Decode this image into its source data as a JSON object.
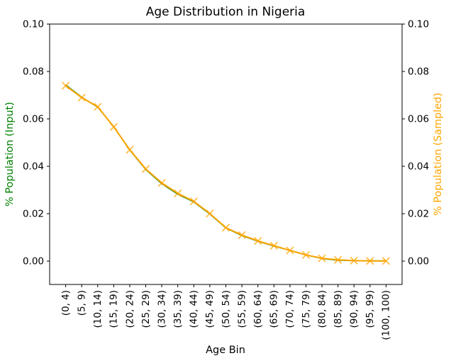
{
  "chart_data": {
    "type": "line",
    "title": "Age Distribution in Nigeria",
    "xlabel": "Age Bin",
    "ylabel_left": "% Population (Input)",
    "ylabel_right": "% Population (Sampled)",
    "categories": [
      "(0, 4)",
      "(5, 9)",
      "(10, 14)",
      "(15, 19)",
      "(20, 24)",
      "(25, 29)",
      "(30, 34)",
      "(35, 39)",
      "(40, 44)",
      "(45, 49)",
      "(50, 54)",
      "(55, 59)",
      "(60, 64)",
      "(65, 69)",
      "(70, 74)",
      "(75, 79)",
      "(80, 84)",
      "(85, 89)",
      "(90, 94)",
      "(95, 99)",
      "(100, 100)"
    ],
    "series": [
      {
        "name": "% Population (Input)",
        "axis": "left",
        "color": "#008000",
        "marker": "none",
        "values": [
          0.0743,
          0.0691,
          0.065,
          0.0567,
          0.0469,
          0.0387,
          0.0327,
          0.0283,
          0.025,
          0.0199,
          0.014,
          0.0108,
          0.0084,
          0.0064,
          0.0045,
          0.0026,
          0.0011,
          0.0004,
          0.0002,
          0.0001,
          0.0001
        ]
      },
      {
        "name": "% Population (Sampled)",
        "axis": "right",
        "color": "#ffa500",
        "marker": "x",
        "values": [
          0.074,
          0.069,
          0.0651,
          0.0566,
          0.047,
          0.0389,
          0.033,
          0.0286,
          0.0252,
          0.0201,
          0.0141,
          0.011,
          0.0085,
          0.0065,
          0.0045,
          0.0026,
          0.0012,
          0.0005,
          0.0002,
          0.0001,
          0.0001
        ]
      }
    ],
    "ylim": [
      0.0,
      0.1
    ],
    "yticks": [
      0.0,
      0.02,
      0.04,
      0.06,
      0.08,
      0.1
    ],
    "ytick_labels": [
      "0.00",
      "0.02",
      "0.04",
      "0.06",
      "0.08",
      "0.10"
    ],
    "grid": false,
    "legend": "none",
    "axis_colors": {
      "left_label": "#008000",
      "right_label": "#ffa500",
      "ticks": "#000000"
    }
  }
}
